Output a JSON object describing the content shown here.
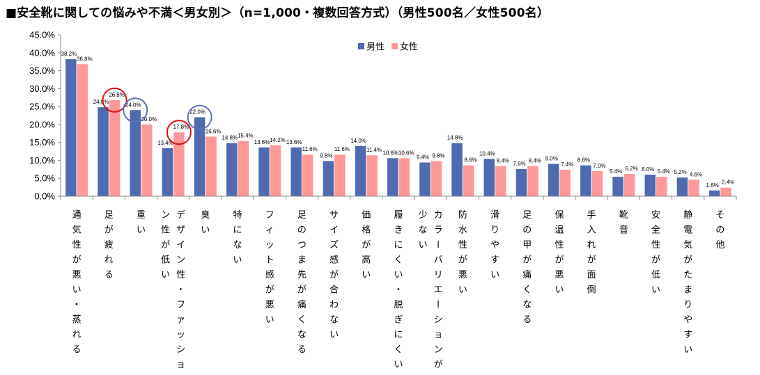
{
  "title": "■安全靴に関しての悩みや不満＜男女別＞（n=1,000・複数回答方式）（男性500名／女性500名）",
  "chart_data": {
    "type": "bar",
    "ylim": [
      0,
      45
    ],
    "yticks": [
      "0.0%",
      "5.0%",
      "10.0%",
      "15.0%",
      "20.0%",
      "25.0%",
      "30.0%",
      "35.0%",
      "40.0%",
      "45.0%"
    ],
    "legend_position": "top-center",
    "categories": [
      "通気性が悪い・蒸れる",
      "足が疲れる",
      "重い",
      "デザイン性・ファッション性が低い",
      "臭い",
      "特にない",
      "フィット感が悪い",
      "足のつま先が痛くなる",
      "サイズ感が合わない",
      "価格が高い",
      "履きにくい・脱ぎにくい",
      "カラーバリエーションが少ない",
      "防水性が悪い",
      "滑りやすい",
      "足の甲が痛くなる",
      "保温性が悪い",
      "手入れが面倒",
      "靴音",
      "安全性が低い",
      "静電気がたまりやすい",
      "その他"
    ],
    "label_columns": [
      [
        "通気性が悪い・蒸れる"
      ],
      [
        "足が疲れる"
      ],
      [
        "重い"
      ],
      [
        "デザイン性・ファッショ",
        "ン性が低い"
      ],
      [
        "臭い"
      ],
      [
        "特にない"
      ],
      [
        "フィット感が悪い"
      ],
      [
        "足のつま先が痛くなる"
      ],
      [
        "サイズ感が合わない"
      ],
      [
        "価格が高い"
      ],
      [
        "履きにくい・脱ぎにくい"
      ],
      [
        "カラーバリエーションが",
        "少ない"
      ],
      [
        "防水性が悪い"
      ],
      [
        "滑りやすい"
      ],
      [
        "足の甲が痛くなる"
      ],
      [
        "保温性が悪い"
      ],
      [
        "手入れが面倒"
      ],
      [
        "靴音"
      ],
      [
        "安全性が低い"
      ],
      [
        "静電気がたまりやすい"
      ],
      [
        "その他"
      ]
    ],
    "series": [
      {
        "name": "男性",
        "color": "#4f6aae",
        "values": [
          38.2,
          24.8,
          24.0,
          13.4,
          22.0,
          14.8,
          13.6,
          13.6,
          9.8,
          14.0,
          10.6,
          9.4,
          14.8,
          10.4,
          7.6,
          9.0,
          8.6,
          5.4,
          6.0,
          5.2,
          1.6
        ],
        "labels": [
          "38.2%",
          "24.8%",
          "24.0%",
          "13.4%",
          "22.0%",
          "14.8%",
          "13.6%",
          "13.6%",
          "9.8%",
          "14.0%",
          "10.6%",
          "9.4%",
          "14.8%",
          "10.4%",
          "7.6%",
          "9.0%",
          "8.6%",
          "5.4%",
          "6.0%",
          "5.2%",
          "1.6%"
        ]
      },
      {
        "name": "女性",
        "color": "#ff9999",
        "values": [
          36.8,
          26.8,
          20.0,
          17.8,
          16.6,
          15.4,
          14.2,
          11.6,
          11.6,
          11.4,
          10.6,
          9.8,
          8.6,
          8.4,
          8.4,
          7.4,
          7.0,
          6.2,
          5.4,
          4.6,
          2.4
        ],
        "labels": [
          "36.8%",
          "26.8%",
          "20.0%",
          "17.8%",
          "16.6%",
          "15.4%",
          "14.2%",
          "11.6%",
          "11.6%",
          "11.4%",
          "10.6%",
          "9.8%",
          "8.6%",
          "8.4%",
          "8.4%",
          "7.4%",
          "7.0%",
          "6.2%",
          "5.4%",
          "4.6%",
          "2.4%"
        ]
      }
    ],
    "annotations": [
      {
        "type": "circle",
        "category_index": 1,
        "series": 1,
        "color": "#e01010"
      },
      {
        "type": "circle",
        "category_index": 2,
        "series": 0,
        "color": "#5a72b0"
      },
      {
        "type": "circle",
        "category_index": 3,
        "series": 1,
        "color": "#e01010"
      },
      {
        "type": "circle",
        "category_index": 4,
        "series": 0,
        "color": "#5a72b0"
      }
    ]
  }
}
